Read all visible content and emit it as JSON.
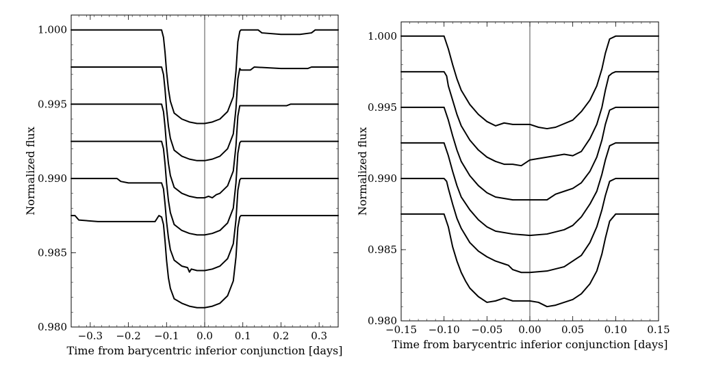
{
  "chart_data": [
    {
      "type": "line",
      "title": "",
      "xlabel": "Time from barycentric inferior conjunction [days]",
      "ylabel": "Normalized flux",
      "xlim": [
        -0.35,
        0.35
      ],
      "ylim": [
        0.98,
        1.001
      ],
      "xticks": [
        -0.3,
        -0.2,
        -0.1,
        0.0,
        0.1,
        0.2,
        0.3
      ],
      "xtick_labels": [
        "−0.3",
        "−0.2",
        "−0.1",
        "0.0",
        "0.1",
        "0.2",
        "0.3"
      ],
      "yticks": [
        0.98,
        0.985,
        0.99,
        0.995,
        1.0
      ],
      "ytick_labels": [
        "0.980",
        "0.985",
        "0.990",
        "0.995",
        "1.000"
      ],
      "vertical_line_x": 0.0,
      "grid": false,
      "series": [
        {
          "x": [
            -0.35,
            -0.113,
            -0.108,
            -0.104,
            -0.1,
            -0.095,
            -0.09,
            -0.08,
            -0.06,
            -0.04,
            -0.02,
            0.0,
            0.02,
            0.04,
            0.06,
            0.075,
            0.082,
            0.087,
            0.092,
            0.095,
            0.1,
            0.14,
            0.15,
            0.2,
            0.25,
            0.28,
            0.29,
            0.35
          ],
          "y": [
            1.0,
            1.0,
            0.9995,
            0.9985,
            0.9972,
            0.996,
            0.9952,
            0.9944,
            0.994,
            0.9938,
            0.9937,
            0.9937,
            0.9938,
            0.994,
            0.9945,
            0.9955,
            0.9972,
            0.9992,
            0.9999,
            1.0,
            1.0,
            1.0,
            0.9998,
            0.9997,
            0.9997,
            0.9998,
            1.0,
            1.0
          ]
        },
        {
          "x": [
            -0.35,
            -0.113,
            -0.108,
            -0.104,
            -0.1,
            -0.095,
            -0.09,
            -0.08,
            -0.06,
            -0.04,
            -0.02,
            0.0,
            0.02,
            0.04,
            0.06,
            0.075,
            0.082,
            0.087,
            0.092,
            0.095,
            0.1,
            0.12,
            0.13,
            0.2,
            0.27,
            0.28,
            0.35
          ],
          "y": [
            0.9975,
            0.9975,
            0.997,
            0.996,
            0.9947,
            0.9935,
            0.9927,
            0.9919,
            0.9915,
            0.9913,
            0.9912,
            0.9912,
            0.9913,
            0.9915,
            0.992,
            0.993,
            0.9947,
            0.9967,
            0.9974,
            0.9973,
            0.9973,
            0.9973,
            0.9975,
            0.9974,
            0.9974,
            0.9975,
            0.9975
          ]
        },
        {
          "x": [
            -0.35,
            -0.113,
            -0.108,
            -0.104,
            -0.1,
            -0.095,
            -0.09,
            -0.08,
            -0.06,
            -0.04,
            -0.02,
            0.0,
            0.01,
            0.02,
            0.03,
            0.04,
            0.06,
            0.075,
            0.082,
            0.087,
            0.092,
            0.095,
            0.1,
            0.2,
            0.215,
            0.225,
            0.35
          ],
          "y": [
            0.995,
            0.995,
            0.9945,
            0.9935,
            0.9922,
            0.991,
            0.9902,
            0.9894,
            0.989,
            0.9888,
            0.9887,
            0.9887,
            0.9888,
            0.9887,
            0.9889,
            0.989,
            0.9895,
            0.9905,
            0.9922,
            0.9942,
            0.9949,
            0.9949,
            0.9949,
            0.9949,
            0.9949,
            0.995,
            0.995
          ]
        },
        {
          "x": [
            -0.35,
            -0.113,
            -0.108,
            -0.104,
            -0.1,
            -0.095,
            -0.09,
            -0.08,
            -0.06,
            -0.04,
            -0.02,
            0.0,
            0.02,
            0.04,
            0.06,
            0.075,
            0.082,
            0.087,
            0.092,
            0.095,
            0.35
          ],
          "y": [
            0.9925,
            0.9925,
            0.992,
            0.991,
            0.9897,
            0.9885,
            0.9877,
            0.9869,
            0.9865,
            0.9863,
            0.9862,
            0.9862,
            0.9863,
            0.9865,
            0.987,
            0.988,
            0.9897,
            0.9917,
            0.9924,
            0.9925,
            0.9925
          ]
        },
        {
          "x": [
            -0.35,
            -0.23,
            -0.22,
            -0.2,
            -0.12,
            -0.113,
            -0.108,
            -0.104,
            -0.1,
            -0.095,
            -0.09,
            -0.08,
            -0.06,
            -0.045,
            -0.04,
            -0.035,
            -0.02,
            0.0,
            0.02,
            0.04,
            0.06,
            0.075,
            0.082,
            0.087,
            0.092,
            0.095,
            0.35
          ],
          "y": [
            0.99,
            0.99,
            0.9898,
            0.9897,
            0.9897,
            0.9897,
            0.9893,
            0.9883,
            0.9871,
            0.986,
            0.9852,
            0.9845,
            0.9841,
            0.984,
            0.9837,
            0.9839,
            0.9838,
            0.9838,
            0.9839,
            0.9841,
            0.9846,
            0.9856,
            0.9872,
            0.9892,
            0.9899,
            0.99,
            0.99
          ]
        },
        {
          "x": [
            -0.35,
            -0.34,
            -0.33,
            -0.28,
            -0.13,
            -0.12,
            -0.113,
            -0.108,
            -0.104,
            -0.1,
            -0.095,
            -0.09,
            -0.08,
            -0.06,
            -0.04,
            -0.02,
            0.0,
            0.02,
            0.04,
            0.06,
            0.075,
            0.082,
            0.087,
            0.092,
            0.095,
            0.35
          ],
          "y": [
            0.9875,
            0.9875,
            0.9872,
            0.9871,
            0.9871,
            0.9875,
            0.9874,
            0.9869,
            0.9858,
            0.9845,
            0.9833,
            0.9826,
            0.9819,
            0.9816,
            0.9814,
            0.9813,
            0.9813,
            0.9814,
            0.9816,
            0.9821,
            0.9831,
            0.9847,
            0.9867,
            0.9874,
            0.9875,
            0.9875
          ]
        }
      ]
    },
    {
      "type": "line",
      "title": "",
      "xlabel": "Time from barycentric inferior conjunction [days]",
      "ylabel": "Normalized flux",
      "xlim": [
        -0.15,
        0.15
      ],
      "ylim": [
        0.98,
        1.001
      ],
      "xticks": [
        -0.15,
        -0.1,
        -0.05,
        0.0,
        0.05,
        0.1,
        0.15
      ],
      "xtick_labels": [
        "−0.15",
        "−0.10",
        "−0.05",
        "0.00",
        "0.05",
        "0.10",
        "0.15"
      ],
      "yticks": [
        0.98,
        0.985,
        0.99,
        0.995,
        1.0
      ],
      "ytick_labels": [
        "0.980",
        "0.985",
        "0.990",
        "0.995",
        "1.000"
      ],
      "vertical_line_x": 0.0,
      "grid": false,
      "series": [
        {
          "x": [
            -0.15,
            -0.1,
            -0.095,
            -0.09,
            -0.085,
            -0.08,
            -0.07,
            -0.06,
            -0.05,
            -0.04,
            -0.03,
            -0.02,
            0.0,
            0.01,
            0.02,
            0.03,
            0.05,
            0.06,
            0.07,
            0.078,
            0.084,
            0.088,
            0.093,
            0.1,
            0.15
          ],
          "y": [
            1.0,
            1.0,
            0.9991,
            0.998,
            0.997,
            0.9962,
            0.9952,
            0.9945,
            0.994,
            0.9937,
            0.9939,
            0.9938,
            0.9938,
            0.9936,
            0.9935,
            0.9936,
            0.9941,
            0.9947,
            0.9955,
            0.9965,
            0.9977,
            0.9988,
            0.9998,
            1.0,
            1.0
          ]
        },
        {
          "x": [
            -0.15,
            -0.1,
            -0.097,
            -0.095,
            -0.09,
            -0.085,
            -0.08,
            -0.07,
            -0.06,
            -0.05,
            -0.04,
            -0.03,
            -0.02,
            -0.01,
            0.0,
            0.01,
            0.03,
            0.04,
            0.05,
            0.06,
            0.07,
            0.078,
            0.084,
            0.088,
            0.092,
            0.096,
            0.1,
            0.15
          ],
          "y": [
            0.9975,
            0.9975,
            0.9972,
            0.9965,
            0.9955,
            0.9945,
            0.9937,
            0.9927,
            0.992,
            0.9915,
            0.9912,
            0.991,
            0.991,
            0.9909,
            0.9913,
            0.9914,
            0.9916,
            0.9917,
            0.9916,
            0.9919,
            0.9928,
            0.9938,
            0.995,
            0.9962,
            0.9972,
            0.9974,
            0.9975,
            0.9975
          ]
        },
        {
          "x": [
            -0.15,
            -0.1,
            -0.095,
            -0.09,
            -0.085,
            -0.08,
            -0.07,
            -0.06,
            -0.05,
            -0.04,
            -0.02,
            0.0,
            0.02,
            0.03,
            0.04,
            0.05,
            0.06,
            0.07,
            0.078,
            0.084,
            0.088,
            0.093,
            0.1,
            0.15
          ],
          "y": [
            0.995,
            0.995,
            0.9941,
            0.993,
            0.992,
            0.9912,
            0.9902,
            0.9895,
            0.989,
            0.9887,
            0.9885,
            0.9885,
            0.9885,
            0.9889,
            0.9891,
            0.9893,
            0.9897,
            0.9905,
            0.9915,
            0.9927,
            0.9938,
            0.9948,
            0.995,
            0.995
          ]
        },
        {
          "x": [
            -0.15,
            -0.1,
            -0.095,
            -0.09,
            -0.085,
            -0.08,
            -0.07,
            -0.06,
            -0.05,
            -0.04,
            -0.02,
            0.0,
            0.02,
            0.04,
            0.05,
            0.06,
            0.07,
            0.078,
            0.084,
            0.088,
            0.093,
            0.1,
            0.15
          ],
          "y": [
            0.9925,
            0.9925,
            0.9916,
            0.9905,
            0.9895,
            0.9887,
            0.9878,
            0.9871,
            0.9866,
            0.9863,
            0.9861,
            0.986,
            0.9861,
            0.9864,
            0.9867,
            0.9873,
            0.9882,
            0.9891,
            0.9903,
            0.9913,
            0.9923,
            0.9925,
            0.9925
          ]
        },
        {
          "x": [
            -0.15,
            -0.1,
            -0.097,
            -0.095,
            -0.09,
            -0.085,
            -0.08,
            -0.07,
            -0.06,
            -0.05,
            -0.04,
            -0.03,
            -0.025,
            -0.02,
            -0.01,
            0.0,
            0.02,
            0.04,
            0.06,
            0.07,
            0.078,
            0.084,
            0.088,
            0.093,
            0.1,
            0.15
          ],
          "y": [
            0.99,
            0.99,
            0.9898,
            0.9893,
            0.9882,
            0.9872,
            0.9865,
            0.9855,
            0.9849,
            0.9845,
            0.9842,
            0.984,
            0.9839,
            0.9836,
            0.9834,
            0.9834,
            0.9835,
            0.9838,
            0.9846,
            0.9855,
            0.9866,
            0.9878,
            0.9888,
            0.9898,
            0.99,
            0.99
          ]
        },
        {
          "x": [
            -0.15,
            -0.1,
            -0.095,
            -0.09,
            -0.085,
            -0.08,
            -0.075,
            -0.07,
            -0.06,
            -0.05,
            -0.04,
            -0.03,
            -0.02,
            0.0,
            0.01,
            0.02,
            0.03,
            0.05,
            0.06,
            0.07,
            0.078,
            0.084,
            0.088,
            0.093,
            0.1,
            0.15
          ],
          "y": [
            0.9875,
            0.9875,
            0.9866,
            0.9852,
            0.9842,
            0.9834,
            0.9828,
            0.9823,
            0.9817,
            0.9813,
            0.9814,
            0.9816,
            0.9814,
            0.9814,
            0.9813,
            0.981,
            0.9811,
            0.9815,
            0.9819,
            0.9826,
            0.9835,
            0.9847,
            0.9858,
            0.987,
            0.9875,
            0.9875
          ]
        }
      ]
    }
  ]
}
